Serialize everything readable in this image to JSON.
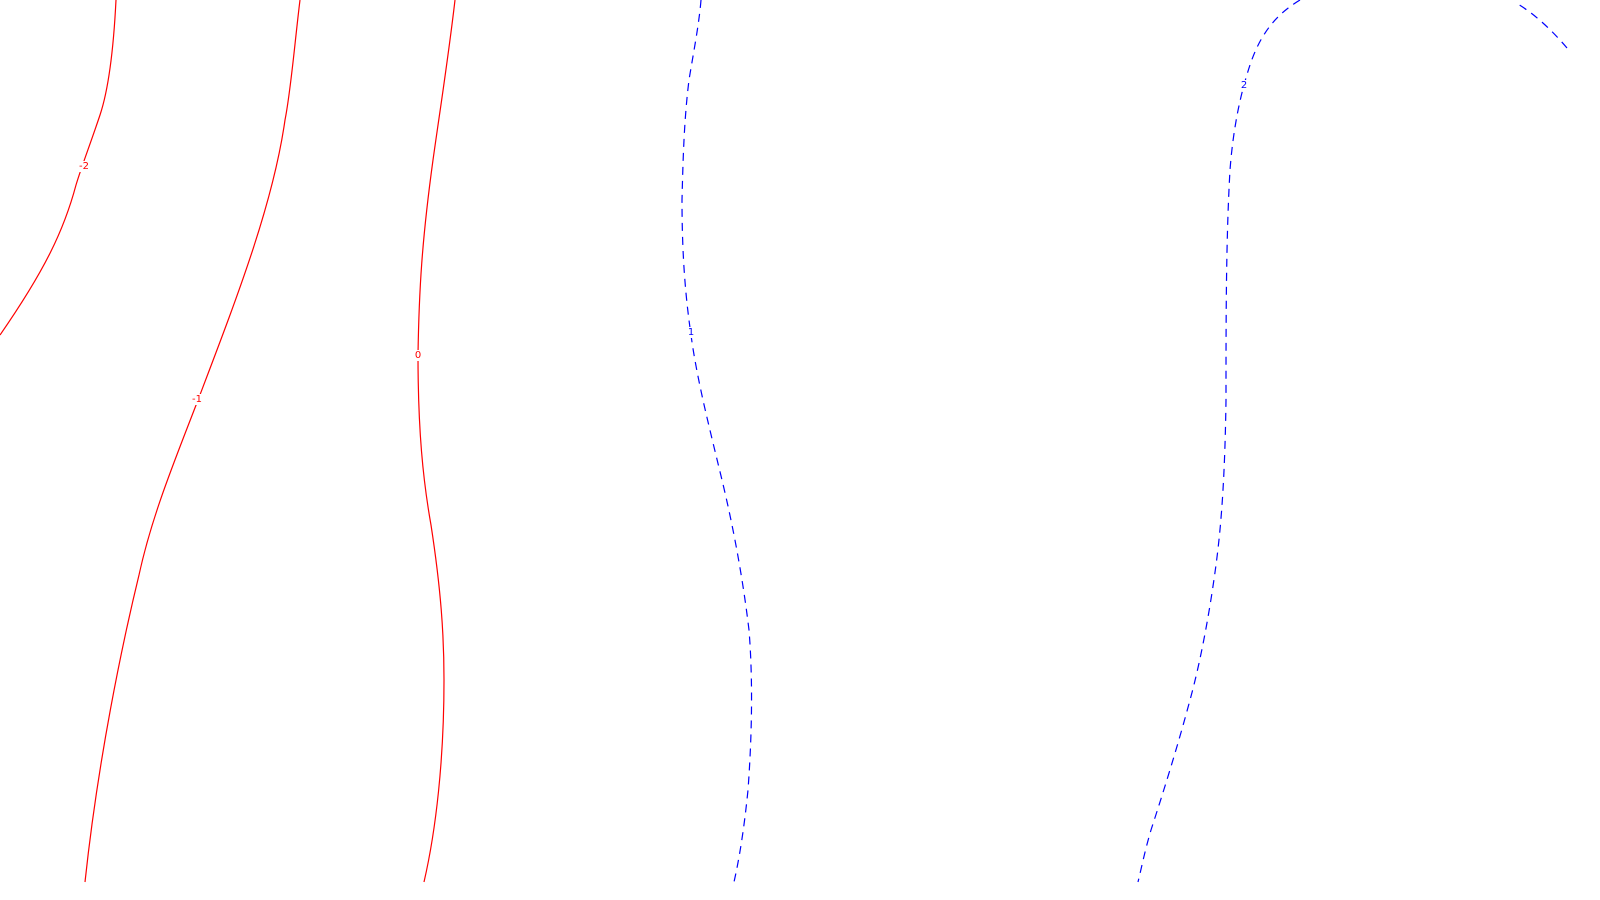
{
  "chart_data": {
    "type": "contour",
    "title": "",
    "xlabel": "",
    "ylabel": "",
    "grid": false,
    "legend": "none",
    "colors": {
      "negative": "#ff0000",
      "positive": "#0000ff",
      "background": "#ffffff"
    },
    "line_styles": {
      "negative": "solid",
      "positive": "dashed"
    },
    "contours": [
      {
        "level": -2,
        "label": "-2",
        "color": "#ff0000",
        "style": "solid"
      },
      {
        "level": -1,
        "label": "-1",
        "color": "#ff0000",
        "style": "solid"
      },
      {
        "level": 0,
        "label": "0",
        "color": "#ff0000",
        "style": "solid"
      },
      {
        "level": 1,
        "label": "1",
        "color": "#0000ff",
        "style": "dashed"
      },
      {
        "level": 2,
        "label": "2",
        "color": "#0000ff",
        "style": "dashed"
      }
    ]
  }
}
